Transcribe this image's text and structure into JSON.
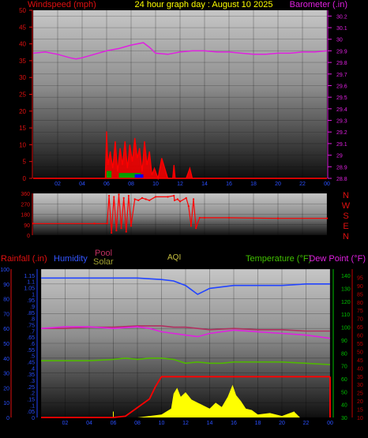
{
  "header": {
    "left": "Windspeed (mph)",
    "center": "24 hour graph day : August 10 2025",
    "right": "Barometer (.in)"
  },
  "direction_letters": [
    "N",
    "W",
    "S",
    "E",
    "N"
  ],
  "bottom_headers": {
    "rainfall": "Rainfall (.in)",
    "humidity": "Humidity",
    "pool": "Pool",
    "solar": "Solar",
    "aqi": "AQI",
    "temperature": "Temperature (°F)",
    "dewpoint": "Dew Point (°F)"
  },
  "colors": {
    "wind": "#ff0000",
    "gust_green": "#00a000",
    "gust_blue": "#0000ff",
    "barometer": "#e020e0",
    "direction": "#ff0000",
    "humidity": "#2244ff",
    "pool": "#b03060",
    "solar": "#ffff00",
    "temperature": "#50b800",
    "dewpoint": "#e020e0",
    "rain": "#ff0000",
    "tempaxis": "#00c000",
    "dewaxis": "#c00000"
  },
  "chart_data": [
    {
      "type": "line",
      "title": "24 hour graph day : August 10 2025",
      "x_ticks": [
        "02",
        "04",
        "06",
        "08",
        "10",
        "12",
        "14",
        "16",
        "18",
        "20",
        "22",
        "00"
      ],
      "y_left": {
        "label": "Windspeed (mph)",
        "range": [
          0,
          50
        ],
        "ticks": [
          0,
          5,
          10,
          15,
          20,
          25,
          30,
          35,
          40,
          45,
          50
        ]
      },
      "y_right": {
        "label": "Barometer (.in)",
        "range": [
          28.8,
          30.25
        ],
        "ticks": [
          28.8,
          28.9,
          29,
          29.1,
          29.2,
          29.3,
          29.4,
          29.5,
          29.6,
          29.7,
          29.8,
          29.9,
          30,
          30.1,
          30.2
        ]
      },
      "series": [
        {
          "name": "Barometer (.in)",
          "axis": "right",
          "x": [
            0,
            1,
            2,
            3,
            3.5,
            4,
            5,
            6,
            7,
            8,
            9,
            9.5,
            10,
            11,
            12,
            13,
            14,
            15,
            16,
            17,
            18,
            19,
            20,
            21,
            22,
            23,
            24
          ],
          "y": [
            29.88,
            29.89,
            29.87,
            29.84,
            29.83,
            29.84,
            29.87,
            29.9,
            29.92,
            29.95,
            29.97,
            29.93,
            29.88,
            29.87,
            29.89,
            29.9,
            29.9,
            29.89,
            29.89,
            29.88,
            29.87,
            29.87,
            29.88,
            29.88,
            29.89,
            29.89,
            29.9
          ]
        },
        {
          "name": "Windspeed (mph)",
          "axis": "left",
          "x": [
            0,
            5,
            5.9,
            6,
            6.1,
            6.3,
            6.5,
            6.7,
            6.9,
            7.1,
            7.3,
            7.5,
            7.7,
            7.9,
            8.1,
            8.3,
            8.5,
            8.7,
            8.9,
            9.1,
            9.3,
            9.5,
            9.7,
            9.9,
            10.2,
            10.5,
            11,
            11.4,
            11.5,
            11.6,
            12,
            12.5,
            12.8,
            13,
            13.5,
            14,
            24
          ],
          "y": [
            0,
            0,
            0,
            14,
            4,
            8,
            3,
            11,
            2,
            9,
            4,
            11,
            3,
            10,
            5,
            12,
            6,
            9,
            2,
            11,
            4,
            8,
            1,
            3,
            0,
            6,
            0,
            0,
            4,
            0,
            0,
            0,
            3,
            0,
            0,
            0,
            0
          ]
        }
      ]
    },
    {
      "type": "scatter",
      "y_range": [
        0,
        360
      ],
      "y_ticks": [
        0,
        90,
        180,
        270,
        360
      ],
      "series": [
        {
          "name": "Wind direction",
          "x": [
            0,
            5,
            6.05,
            6.2,
            6.4,
            6.6,
            6.8,
            7,
            7.2,
            7.4,
            7.6,
            7.8,
            8,
            8.3,
            8.6,
            8.9,
            9.2,
            9.5,
            10,
            11,
            11.5,
            11.55,
            11.8,
            12,
            12.5,
            12.7,
            12.9,
            13.1,
            13.3,
            13.6,
            14,
            16,
            20,
            24
          ],
          "y": [
            100,
            100,
            100,
            340,
            20,
            330,
            40,
            350,
            60,
            320,
            30,
            340,
            80,
            310,
            300,
            320,
            310,
            300,
            330,
            330,
            340,
            300,
            310,
            290,
            320,
            250,
            80,
            310,
            60,
            150,
            150,
            150,
            145,
            145
          ]
        }
      ]
    },
    {
      "type": "line",
      "x_ticks": [
        "02",
        "04",
        "06",
        "08",
        "10",
        "12",
        "14",
        "16",
        "18",
        "20",
        "22",
        "00"
      ],
      "rain_axis": {
        "label": "Rainfall (.in)",
        "range": [
          0,
          1.2
        ],
        "ticks": [
          0,
          0.05,
          0.1,
          0.15,
          0.2,
          0.25,
          0.3,
          0.35,
          0.4,
          0.45,
          0.5,
          0.55,
          0.6,
          0.65,
          0.7,
          0.75,
          0.8,
          0.85,
          0.9,
          0.95,
          1,
          1.05,
          1.1,
          1.15
        ]
      },
      "humidity_axis": {
        "range": [
          0,
          100
        ],
        "ticks": [
          0,
          10,
          20,
          30,
          40,
          50,
          60,
          70,
          80,
          90,
          100
        ]
      },
      "temperature_axis": {
        "label": "Temperature (°F)",
        "range": [
          30,
          145
        ],
        "ticks": [
          30,
          40,
          50,
          60,
          70,
          80,
          90,
          100,
          110,
          120,
          130,
          140
        ]
      },
      "dewpoint_axis": {
        "label": "Dew Point (°F)",
        "range": [
          10,
          100
        ],
        "ticks": [
          10,
          15,
          20,
          25,
          30,
          35,
          40,
          45,
          50,
          55,
          60,
          65,
          70,
          75,
          80,
          85,
          90,
          95
        ]
      },
      "series": [
        {
          "name": "Humidity",
          "axis": "humidity",
          "x": [
            0,
            2,
            4,
            6,
            8,
            10,
            11,
            12,
            12.5,
            13,
            13.5,
            14,
            15,
            16,
            18,
            20,
            22,
            24
          ],
          "y": [
            94,
            94,
            94,
            94,
            94,
            93,
            92,
            89,
            86,
            83,
            85,
            87,
            88,
            89,
            89,
            89,
            90,
            90
          ]
        },
        {
          "name": "Pool",
          "axis": "temperature",
          "x": [
            0,
            2,
            4,
            6,
            8,
            10,
            11,
            12,
            13,
            14,
            16,
            18,
            20,
            22,
            24
          ],
          "y": [
            99,
            99,
            100,
            100,
            101,
            101,
            100,
            100,
            99,
            98,
            99,
            98,
            98,
            97,
            97
          ]
        },
        {
          "name": "Temperature (°F)",
          "axis": "temperature",
          "x": [
            0,
            2,
            4,
            6,
            7,
            8,
            9,
            10,
            11,
            12,
            13,
            14,
            15,
            16,
            18,
            20,
            22,
            24
          ],
          "y": [
            74,
            74,
            74,
            75,
            76,
            75,
            76,
            76,
            75,
            72,
            73,
            72,
            72,
            73,
            73,
            73,
            72,
            71
          ]
        },
        {
          "name": "Dew Point (°F)",
          "axis": "dewpoint",
          "x": [
            0,
            2,
            4,
            6,
            8,
            9,
            10,
            11,
            12,
            13,
            14,
            16,
            18,
            20,
            22,
            24
          ],
          "y": [
            64,
            65,
            65,
            64,
            65,
            64,
            62,
            61,
            60,
            59,
            61,
            63,
            62,
            61,
            60,
            58
          ]
        },
        {
          "name": "Rainfall (.in)",
          "axis": "rain",
          "x": [
            0,
            6,
            7,
            8,
            9,
            9.5,
            10,
            10.5,
            11,
            24
          ],
          "y": [
            0,
            0,
            0.01,
            0.08,
            0.15,
            0.25,
            0.33,
            0.33,
            0.33,
            0.33
          ]
        },
        {
          "name": "Solar",
          "axis": "humidity",
          "x": [
            0,
            6,
            8,
            9,
            10,
            10.8,
            11,
            11.3,
            11.6,
            12,
            12.5,
            13,
            13.5,
            14,
            14.5,
            15,
            15.5,
            15.9,
            16.2,
            16.6,
            17,
            17.5,
            18,
            19,
            20,
            21,
            21.5,
            24
          ],
          "y": [
            0,
            0,
            0,
            1,
            2,
            6,
            16,
            20,
            14,
            17,
            12,
            10,
            8,
            6,
            10,
            7,
            14,
            22,
            15,
            11,
            6,
            5,
            2,
            3,
            1,
            4,
            0,
            0
          ]
        }
      ]
    }
  ]
}
